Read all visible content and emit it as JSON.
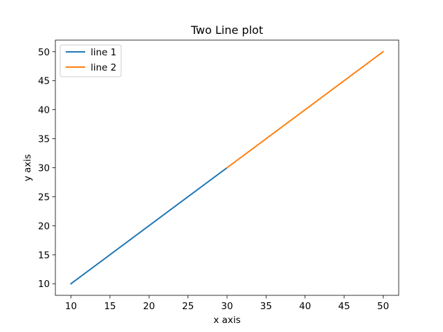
{
  "chart_data": {
    "type": "line",
    "title": "Two Line plot",
    "xlabel": "x axis",
    "ylabel": "y axis",
    "xlim": [
      8,
      52
    ],
    "ylim": [
      8,
      52
    ],
    "x_ticks": [
      10,
      15,
      20,
      25,
      30,
      35,
      40,
      45,
      50
    ],
    "y_ticks": [
      10,
      15,
      20,
      25,
      30,
      35,
      40,
      45,
      50
    ],
    "grid": false,
    "legend_position": "upper-left",
    "series": [
      {
        "name": "line 1",
        "color": "#1f77b4",
        "points": [
          {
            "x": 10,
            "y": 10
          },
          {
            "x": 20,
            "y": 20
          },
          {
            "x": 30,
            "y": 30
          }
        ]
      },
      {
        "name": "line 2",
        "color": "#ff7f0e",
        "points": [
          {
            "x": 30,
            "y": 30
          },
          {
            "x": 40,
            "y": 40
          },
          {
            "x": 50,
            "y": 50
          }
        ]
      }
    ]
  }
}
